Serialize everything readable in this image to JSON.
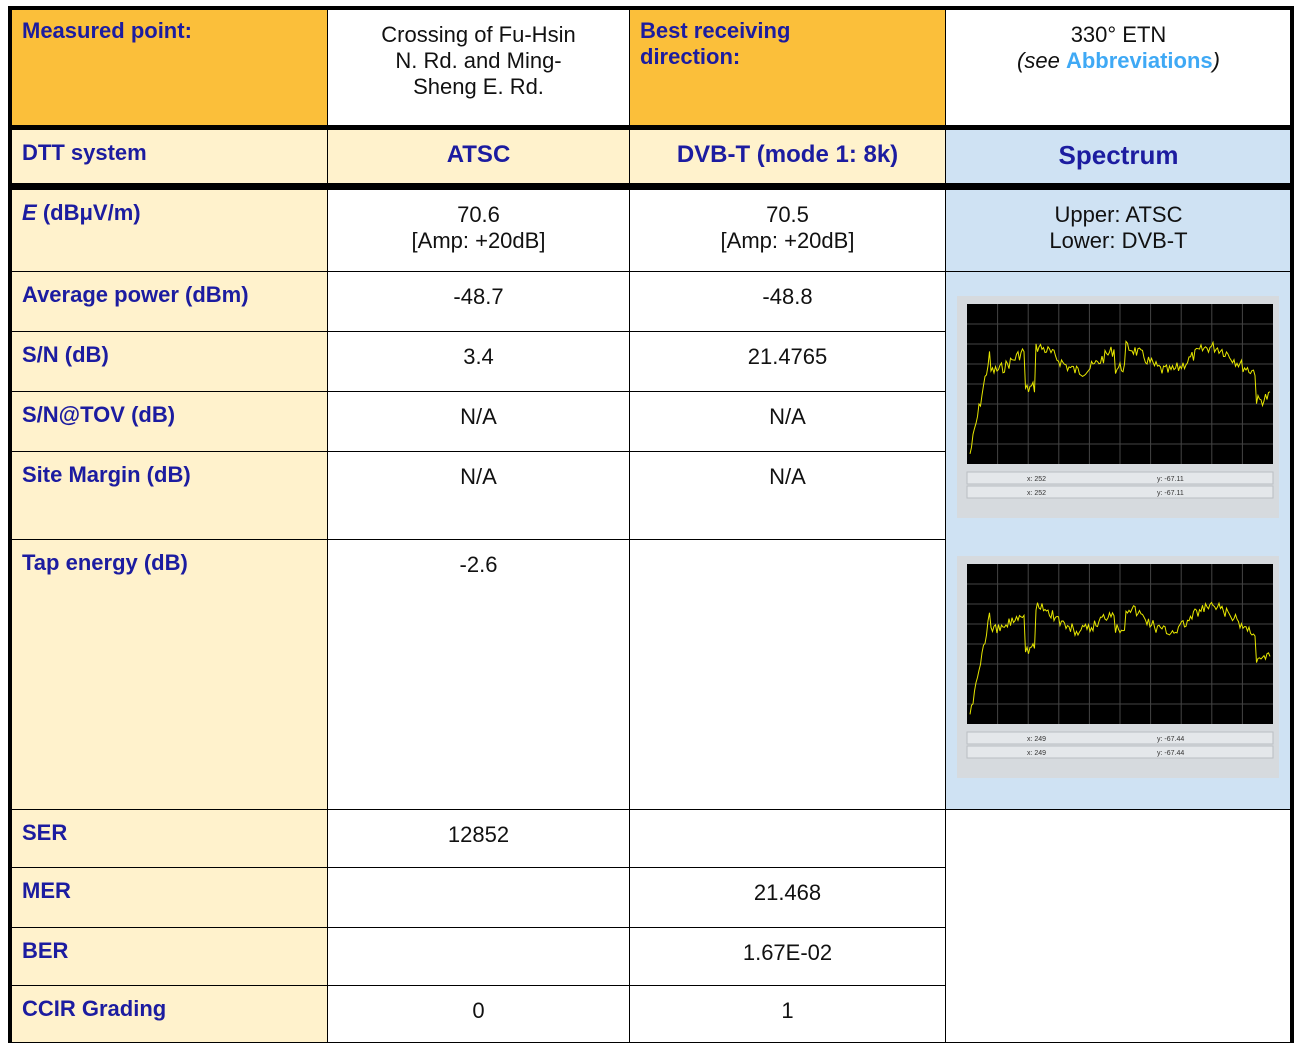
{
  "header": {
    "measured_point_label": "Measured point:",
    "measured_point": "Crossing of Fu-Hsin N. Rd. and Ming-Sheng E. Rd.",
    "best_direction_label": "Best receiving direction:",
    "best_direction": "330° ETN",
    "note_prefix": "(see",
    "note_link": "Abbreviations",
    "note_suffix": ")"
  },
  "columns": [
    "DTT system",
    "ATSC",
    "DVB-T (mode 1: 8k)",
    "Spectrum"
  ],
  "field_row": {
    "label_symbol": "E",
    "label_unit": "(dBμV/m)",
    "atsc": [
      "70.6",
      "[Amp: +20dB]"
    ],
    "dvbt": [
      "70.5",
      "[Amp: +20dB]"
    ],
    "spectrum_note": [
      "Upper: ATSC",
      "Lower: DVB-T"
    ]
  },
  "rows": [
    [
      "Average power (dBm)",
      "-48.7",
      "-48.8"
    ],
    [
      "S/N (dB)",
      "3.4",
      "21.4765"
    ],
    [
      "S/N@TOV (dB)",
      "N/A",
      "N/A"
    ],
    [
      "Site Margin (dB)",
      "N/A",
      "N/A"
    ],
    [
      "Tap energy (dB)",
      "-2.6",
      null
    ],
    [
      "SER",
      "12852",
      null
    ],
    [
      "MER",
      null,
      "21.468"
    ],
    [
      "BER",
      null,
      "1.67E-02"
    ],
    [
      "CCIR Grading",
      "0",
      "1"
    ]
  ],
  "spectra": [
    {
      "readouts": [
        [
          "x: 252",
          "y: -67.11"
        ],
        [
          "x: 252",
          "y: -67.11"
        ]
      ]
    },
    {
      "readouts": [
        [
          "x: 249",
          "y: -67.44"
        ],
        [
          "x: 249",
          "y: -67.44"
        ]
      ]
    }
  ]
}
